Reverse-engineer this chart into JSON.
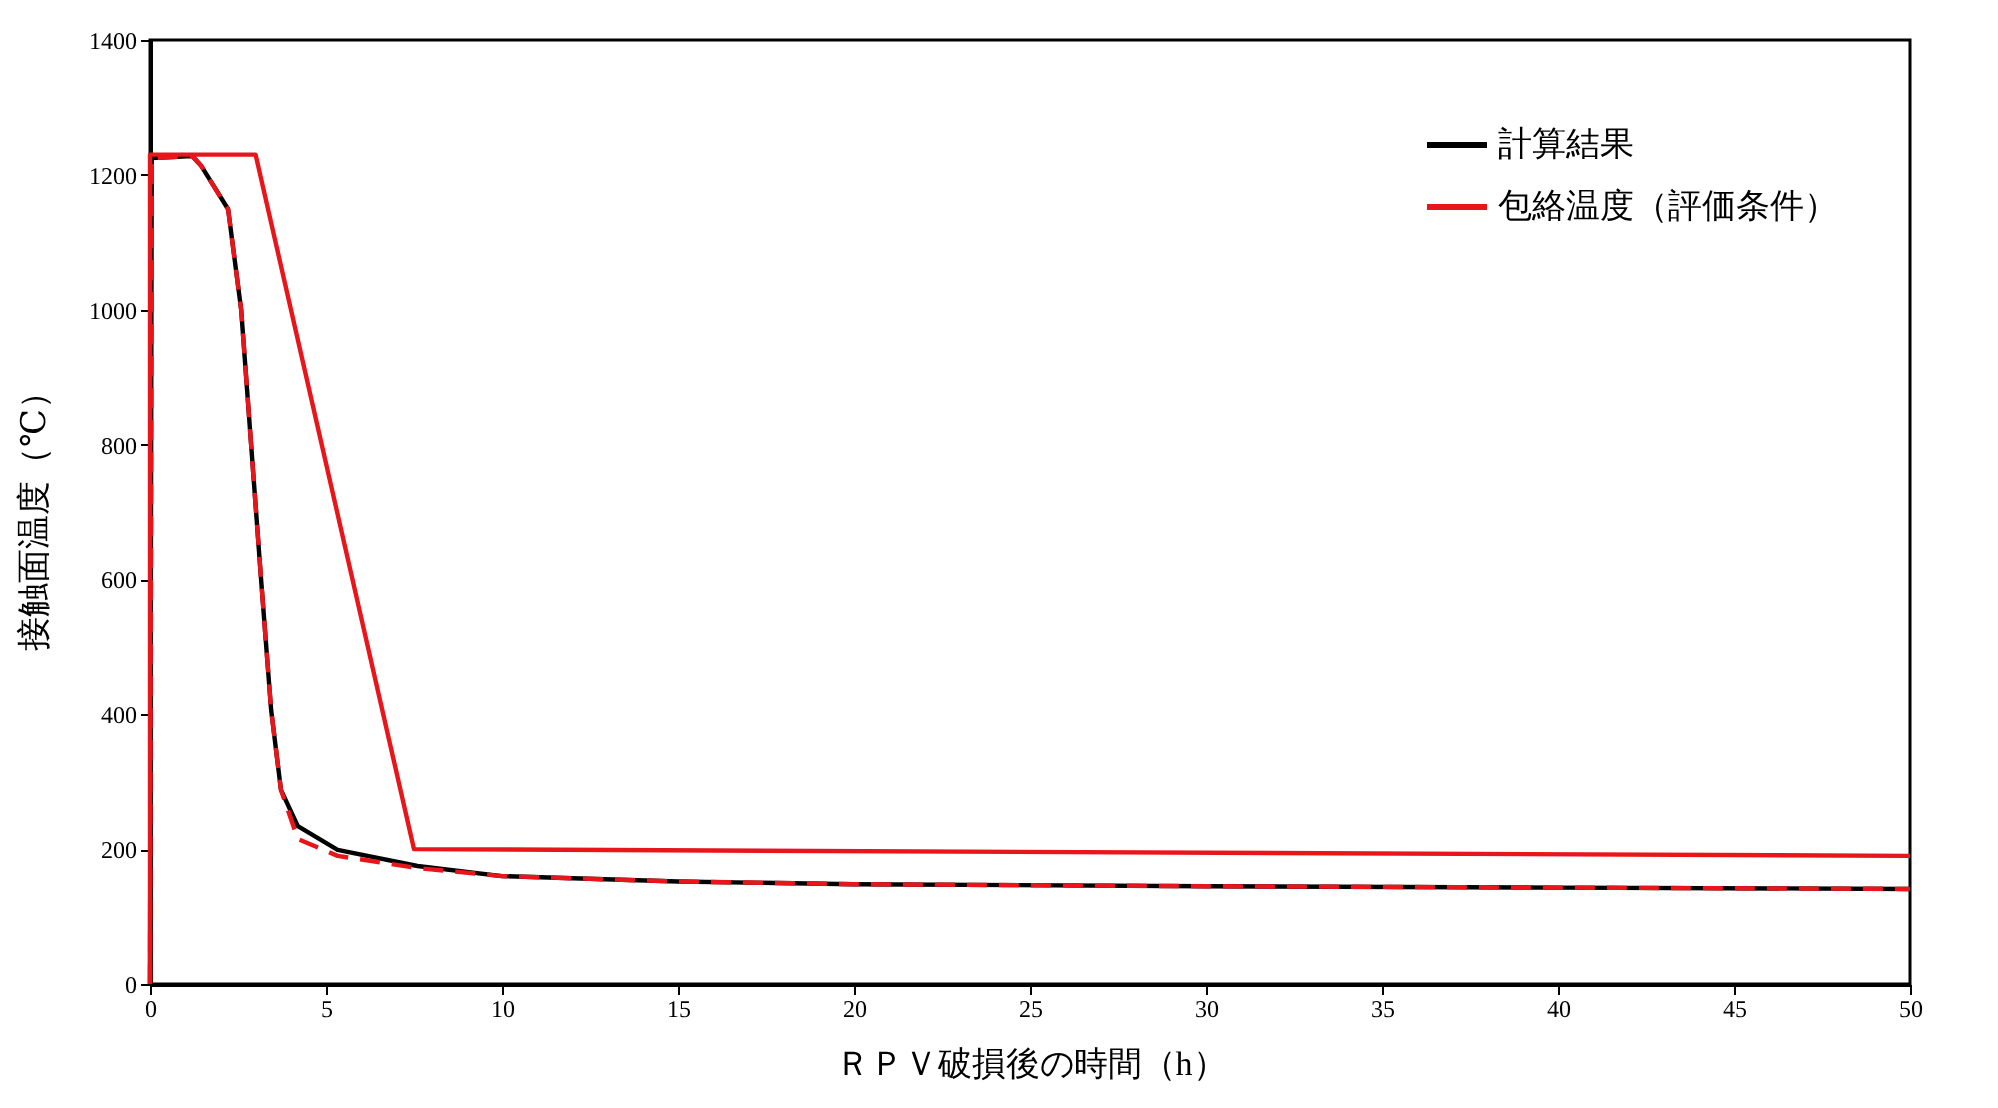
{
  "chart_data": {
    "type": "line",
    "xlabel": "ＲＰＶ破損後の時間（h）",
    "ylabel": "接触面温度（℃）",
    "xlim": [
      0,
      50
    ],
    "xticks": [
      0,
      5,
      10,
      15,
      20,
      25,
      30,
      35,
      40,
      45,
      50
    ],
    "ylim": [
      0,
      1400
    ],
    "yticks": [
      0,
      200,
      400,
      600,
      800,
      1000,
      1200,
      1400
    ],
    "grid": false,
    "legend": "top right",
    "marker": "none",
    "series": [
      {
        "name": "計算結果",
        "color": "#000000",
        "line_style": "solid",
        "x": [
          0,
          0.05,
          1.2,
          1.46,
          2.22,
          2.59,
          2.87,
          3.15,
          3.44,
          3.72,
          4.2,
          5.33,
          7.6,
          10,
          15,
          20,
          30,
          40,
          50
        ],
        "values": [
          0,
          1225,
          1228,
          1213,
          1149,
          1000,
          802,
          604,
          407,
          288,
          234,
          199,
          175,
          160,
          152,
          148,
          145,
          143,
          141
        ]
      },
      {
        "color": "#e8151b",
        "line_style": "dashed",
        "x": [
          0,
          0.05,
          1.2,
          1.46,
          2.22,
          2.59,
          2.87,
          3.15,
          3.44,
          3.72,
          4.2,
          5.33,
          7.6,
          10,
          15,
          20,
          30,
          40,
          50
        ],
        "values": [
          0,
          1225,
          1228,
          1213,
          1149,
          1000,
          802,
          604,
          407,
          288,
          215,
          190,
          172,
          160,
          152,
          148,
          145,
          143,
          141
        ]
      },
      {
        "name": "包絡温度（評価条件）",
        "color": "#e8151b",
        "line_style": "solid",
        "x": [
          0,
          0,
          3.0,
          7.5,
          50
        ],
        "values": [
          0,
          1230,
          1230,
          200,
          190
        ]
      }
    ]
  }
}
